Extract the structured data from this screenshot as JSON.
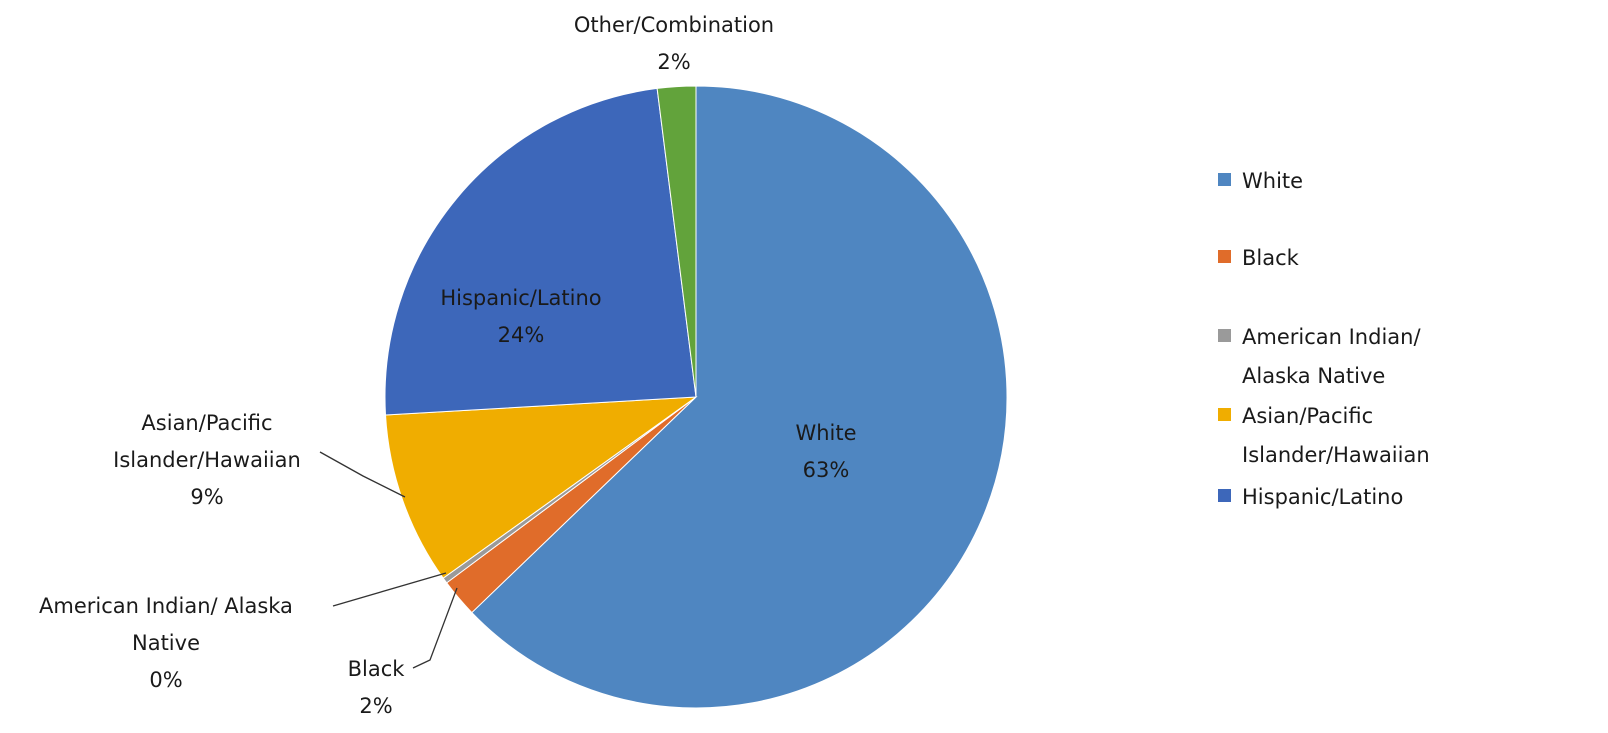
{
  "chart_data": {
    "type": "pie",
    "legend_position": "right",
    "legend_entries": [
      "White",
      "Black",
      "American Indian/ Alaska Native",
      "Asian/Pacific Islander/Hawaiian",
      "Hispanic/Latino"
    ],
    "slices": [
      {
        "name": "White",
        "value": 63,
        "label_lines": [
          "White",
          "63%"
        ],
        "color": "#4f86c1"
      },
      {
        "name": "Black",
        "value": 2,
        "label_lines": [
          "Black",
          "2%"
        ],
        "color": "#e06c2a"
      },
      {
        "name": "American Indian/ Alaska Native",
        "value": 0.3,
        "label_lines": [
          "American Indian/ Alaska",
          "Native",
          "0%"
        ],
        "color": "#9a9a9a"
      },
      {
        "name": "Asian/Pacific Islander/Hawaiian",
        "value": 9,
        "label_lines": [
          "Asian/Pacific",
          "Islander/Hawaiian",
          "9%"
        ],
        "color": "#f0ad00"
      },
      {
        "name": "Hispanic/Latino",
        "value": 24,
        "label_lines": [
          "Hispanic/Latino",
          "24%"
        ],
        "color": "#3d67ba"
      },
      {
        "name": "Other/Combination",
        "value": 2,
        "label_lines": [
          "Other/Combination",
          "2%"
        ],
        "color": "#62a33b"
      }
    ]
  }
}
